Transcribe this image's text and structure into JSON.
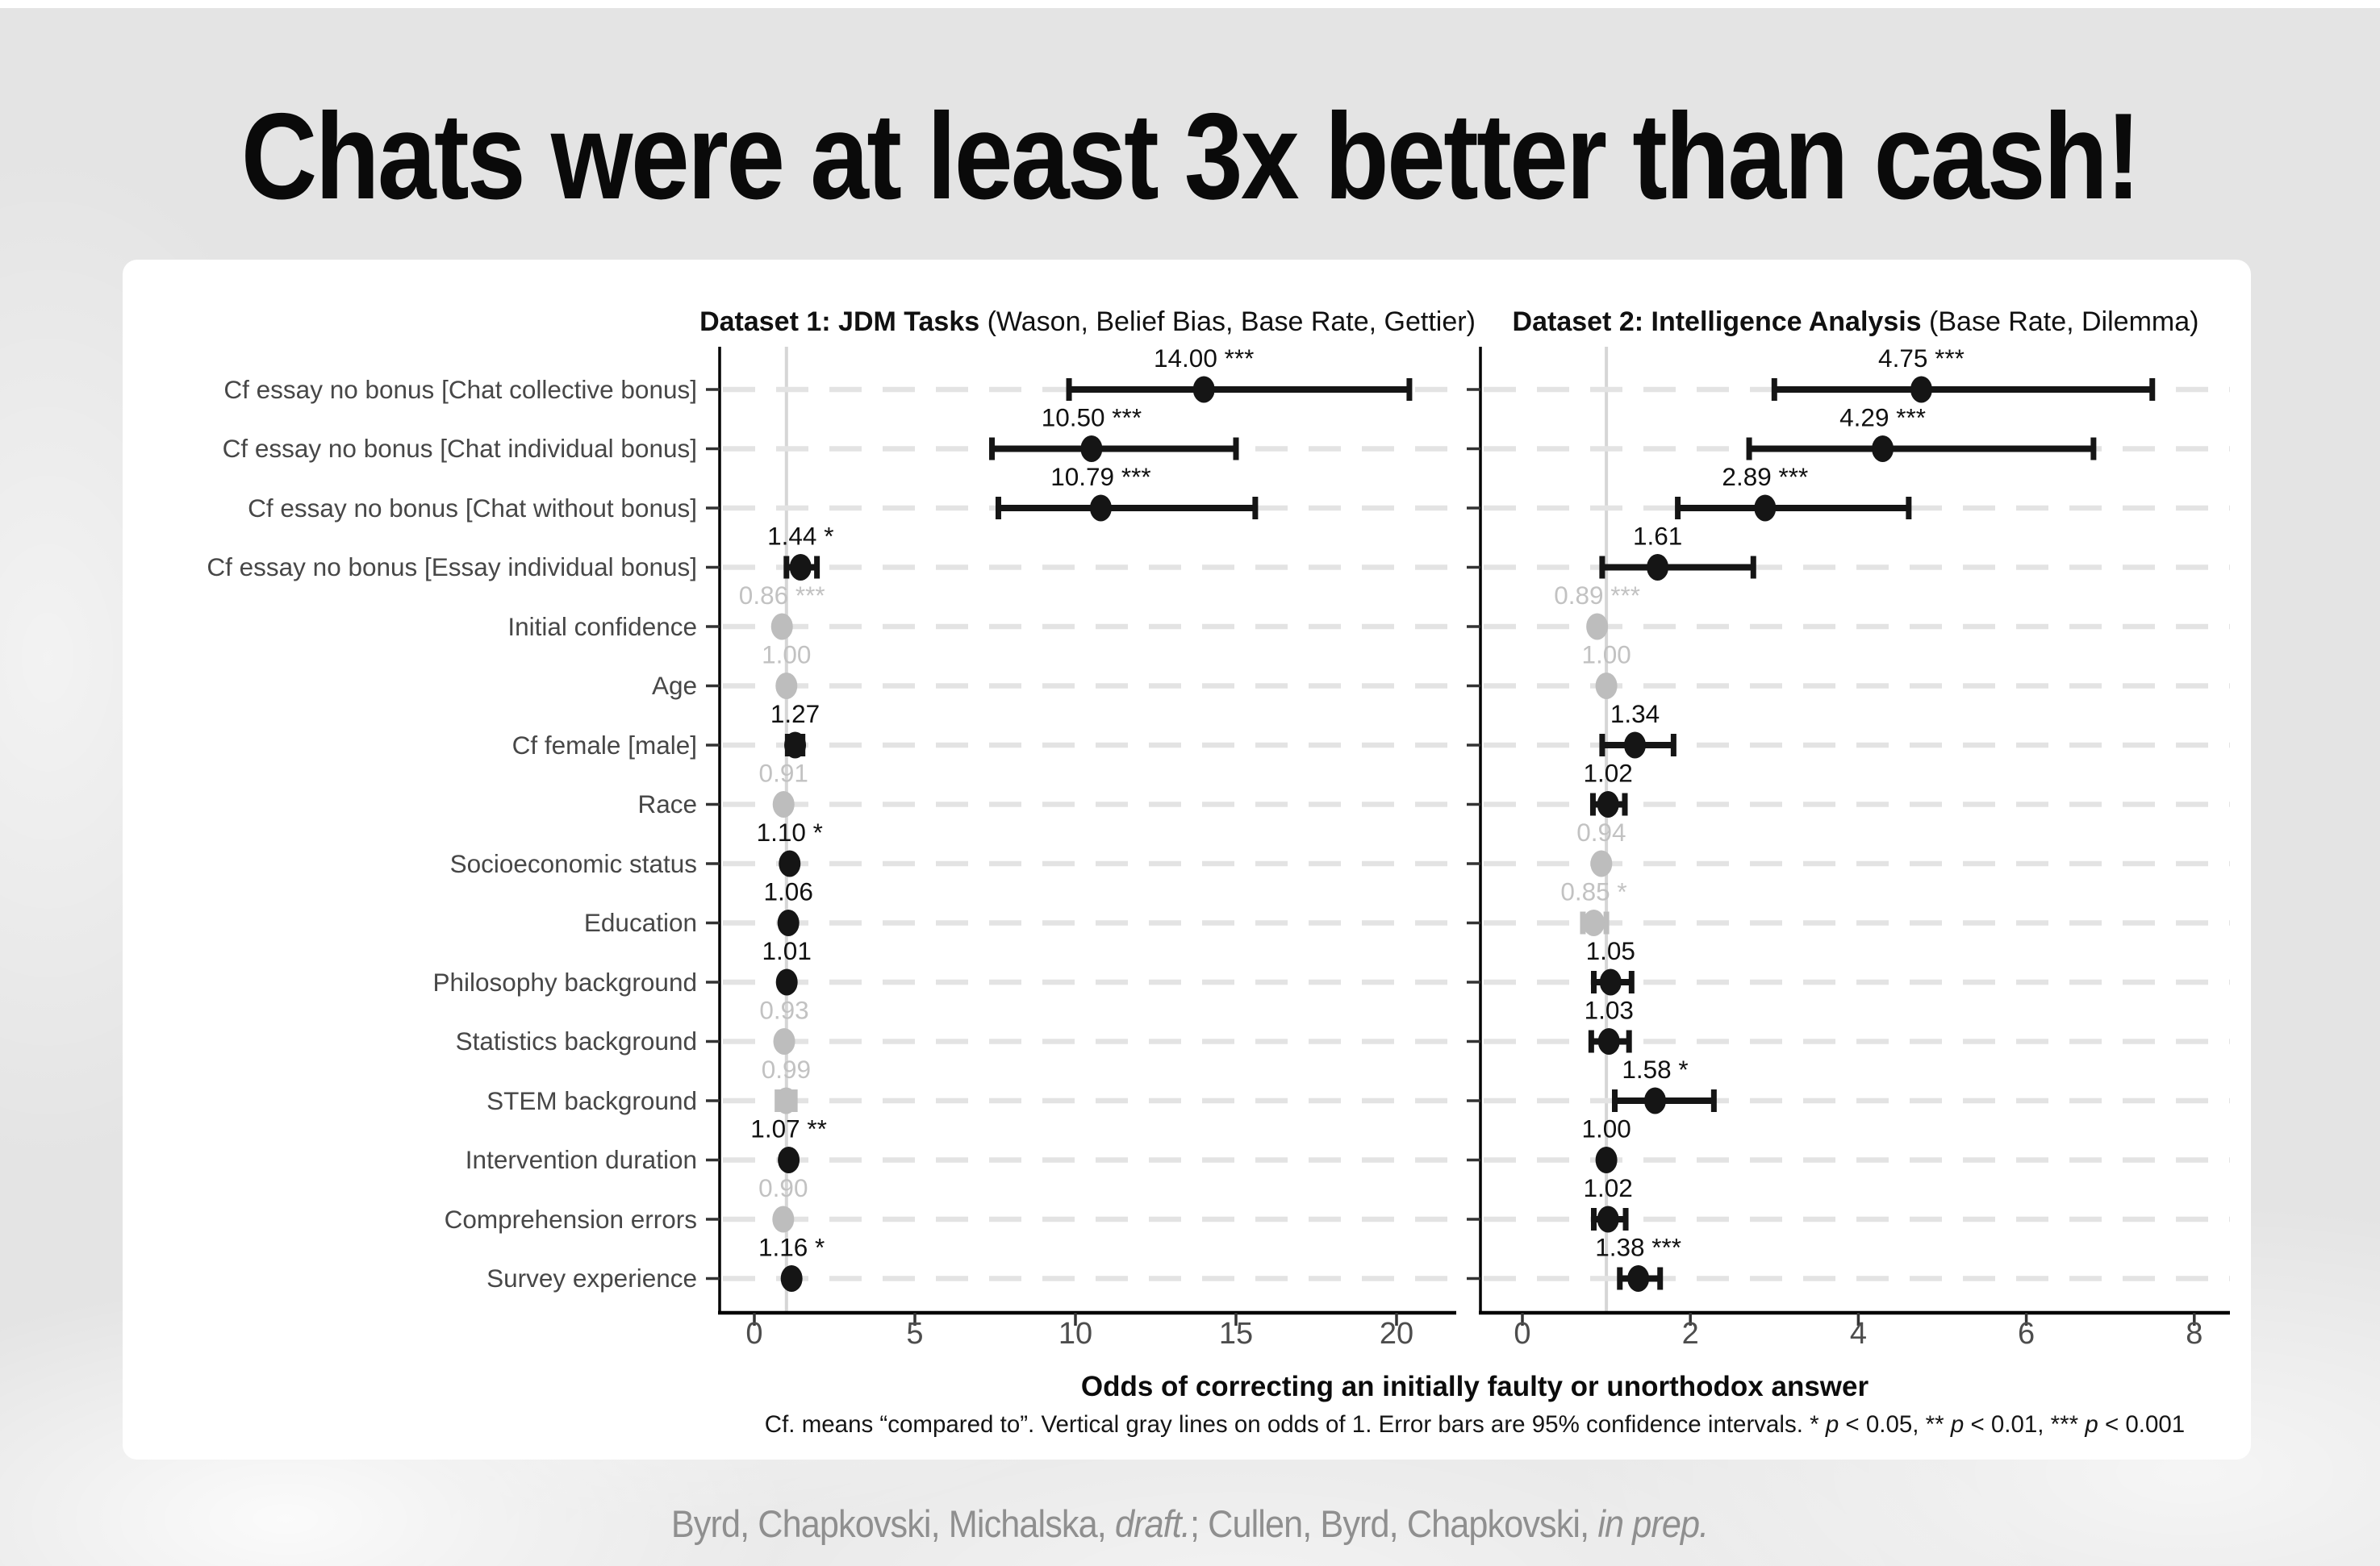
{
  "slide": {
    "title": "Chats were at least 3x better than cash!"
  },
  "colors": {
    "dark": "#151515",
    "gray": "#bdbdbd",
    "label_dark": "#111111",
    "label_gray": "#c2c2c2",
    "axis_text": "#4d4d4d",
    "row_label": "#474747",
    "grid": "#e3e3e3",
    "ref_line": "#d6d6d6",
    "spine": "#000000",
    "tick": "#333333",
    "background": "#e4e4e4",
    "card": "#ffffff",
    "citation": "#8f8f8f"
  },
  "chart_data": {
    "type": "scatter",
    "subtype": "forest-dot-whisker",
    "orientation": "horizontal",
    "grid": "dashed-horizontal-per-row",
    "legend_position": "none",
    "reference_line": 1,
    "categories": [
      "Cf essay no bonus [Chat collective bonus]",
      "Cf essay no bonus [Chat individual bonus]",
      "Cf essay no bonus [Chat without bonus]",
      "Cf essay no bonus [Essay individual bonus]",
      "Initial confidence",
      "Age",
      "Cf female [male]",
      "Race",
      "Socioeconomic status",
      "Education",
      "Philosophy background",
      "Statistics background",
      "STEM background",
      "Intervention duration",
      "Comprehension errors",
      "Survey experience"
    ],
    "panels": [
      {
        "title_segments": [
          {
            "t": "Dataset 1: JDM Tasks",
            "b": true
          },
          {
            "t": " (Wason, Belief Bias, Base Rate, Gettier)"
          }
        ],
        "xlim": [
          -0.9,
          21.9
        ],
        "ticks": [
          0,
          5,
          10,
          15,
          20
        ],
        "points": [
          {
            "label": "14.00",
            "stars": "***",
            "est": 14.0,
            "lo": 9.8,
            "hi": 20.4,
            "tone": "dark"
          },
          {
            "label": "10.50",
            "stars": "***",
            "est": 10.5,
            "lo": 7.4,
            "hi": 15.0,
            "tone": "dark"
          },
          {
            "label": "10.79",
            "stars": "***",
            "est": 10.79,
            "lo": 7.6,
            "hi": 15.6,
            "tone": "dark"
          },
          {
            "label": "1.44",
            "stars": "*",
            "est": 1.44,
            "lo": 1.0,
            "hi": 1.95,
            "tone": "dark"
          },
          {
            "label": "0.86",
            "stars": "***",
            "est": 0.86,
            "lo": null,
            "hi": null,
            "tone": "gray"
          },
          {
            "label": "1.00",
            "stars": "",
            "est": 1.0,
            "lo": null,
            "hi": null,
            "tone": "gray"
          },
          {
            "label": "1.27",
            "stars": "",
            "est": 1.27,
            "lo": 1.04,
            "hi": 1.5,
            "tone": "dark"
          },
          {
            "label": "0.91",
            "stars": "",
            "est": 0.91,
            "lo": null,
            "hi": null,
            "tone": "gray"
          },
          {
            "label": "1.10",
            "stars": "*",
            "est": 1.1,
            "lo": null,
            "hi": null,
            "tone": "dark"
          },
          {
            "label": "1.06",
            "stars": "",
            "est": 1.06,
            "lo": null,
            "hi": null,
            "tone": "dark"
          },
          {
            "label": "1.01",
            "stars": "",
            "est": 1.01,
            "lo": null,
            "hi": null,
            "tone": "dark"
          },
          {
            "label": "0.93",
            "stars": "",
            "est": 0.93,
            "lo": null,
            "hi": null,
            "tone": "gray"
          },
          {
            "label": "0.99",
            "stars": "",
            "est": 0.99,
            "lo": 0.72,
            "hi": 1.26,
            "tone": "gray"
          },
          {
            "label": "1.07",
            "stars": "**",
            "est": 1.07,
            "lo": null,
            "hi": null,
            "tone": "dark"
          },
          {
            "label": "0.90",
            "stars": "",
            "est": 0.9,
            "lo": null,
            "hi": null,
            "tone": "gray"
          },
          {
            "label": "1.16",
            "stars": "*",
            "est": 1.16,
            "lo": null,
            "hi": null,
            "tone": "dark"
          }
        ]
      },
      {
        "title_segments": [
          {
            "t": "Dataset 2: Intelligence Analysis",
            "b": true
          },
          {
            "t": " (Base Rate, Dilemma)"
          }
        ],
        "xlim": [
          -0.5,
          8.4
        ],
        "ticks": [
          0,
          2,
          4,
          6,
          8
        ],
        "points": [
          {
            "label": "4.75",
            "stars": "***",
            "est": 4.75,
            "lo": 3.0,
            "hi": 7.5,
            "tone": "dark"
          },
          {
            "label": "4.29",
            "stars": "***",
            "est": 4.29,
            "lo": 2.7,
            "hi": 6.8,
            "tone": "dark"
          },
          {
            "label": "2.89",
            "stars": "***",
            "est": 2.89,
            "lo": 1.85,
            "hi": 4.6,
            "tone": "dark"
          },
          {
            "label": "1.61",
            "stars": "",
            "est": 1.61,
            "lo": 0.95,
            "hi": 2.75,
            "tone": "dark"
          },
          {
            "label": "0.89",
            "stars": "***",
            "est": 0.89,
            "lo": null,
            "hi": null,
            "tone": "gray"
          },
          {
            "label": "1.00",
            "stars": "",
            "est": 1.0,
            "lo": null,
            "hi": null,
            "tone": "gray"
          },
          {
            "label": "1.34",
            "stars": "",
            "est": 1.34,
            "lo": 0.95,
            "hi": 1.8,
            "tone": "dark"
          },
          {
            "label": "1.02",
            "stars": "",
            "est": 1.02,
            "lo": 0.84,
            "hi": 1.22,
            "tone": "dark"
          },
          {
            "label": "0.94",
            "stars": "",
            "est": 0.94,
            "lo": null,
            "hi": null,
            "tone": "gray"
          },
          {
            "label": "0.85",
            "stars": "*",
            "est": 0.85,
            "lo": 0.72,
            "hi": 1.0,
            "tone": "gray"
          },
          {
            "label": "1.05",
            "stars": "",
            "est": 1.05,
            "lo": 0.85,
            "hi": 1.3,
            "tone": "dark"
          },
          {
            "label": "1.03",
            "stars": "",
            "est": 1.03,
            "lo": 0.82,
            "hi": 1.27,
            "tone": "dark"
          },
          {
            "label": "1.58",
            "stars": "*",
            "est": 1.58,
            "lo": 1.1,
            "hi": 2.28,
            "tone": "dark"
          },
          {
            "label": "1.00",
            "stars": "",
            "est": 1.0,
            "lo": null,
            "hi": null,
            "tone": "dark"
          },
          {
            "label": "1.02",
            "stars": "",
            "est": 1.02,
            "lo": 0.85,
            "hi": 1.23,
            "tone": "dark"
          },
          {
            "label": "1.38",
            "stars": "***",
            "est": 1.38,
            "lo": 1.16,
            "hi": 1.64,
            "tone": "dark"
          }
        ]
      }
    ],
    "xlabel": "Odds of correcting an initially faulty or unorthodox answer",
    "caption_segments": [
      {
        "t": "Cf. means “compared to”. Vertical gray lines on odds of 1. Error bars are 95% confidence intervals. * "
      },
      {
        "t": "p",
        "i": true
      },
      {
        "t": " < 0.05, ** "
      },
      {
        "t": "p",
        "i": true
      },
      {
        "t": " < 0.01, *** "
      },
      {
        "t": "p",
        "i": true
      },
      {
        "t": " < 0.001"
      }
    ]
  },
  "footer": {
    "citation_segments": [
      {
        "t": "Byrd, Chapkovski, Michalska, "
      },
      {
        "t": "draft.",
        "i": true
      },
      {
        "t": "; Cullen, Byrd, Chapkovski, "
      },
      {
        "t": "in prep.",
        "i": true
      }
    ]
  }
}
